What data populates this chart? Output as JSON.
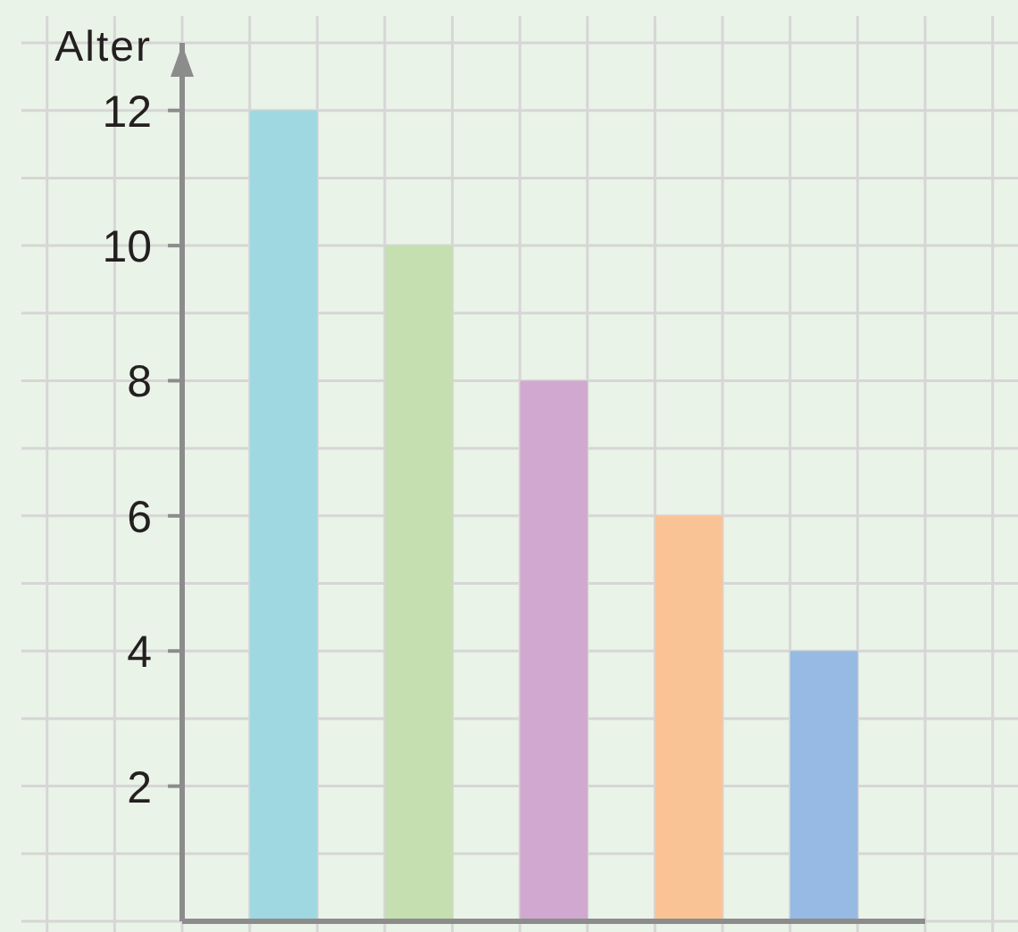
{
  "chart_data": {
    "type": "bar",
    "ylabel": "Alter",
    "categories": [
      null,
      null,
      null,
      null,
      null
    ],
    "values": [
      12,
      10,
      8,
      6,
      4
    ],
    "colors": [
      "#a0d8e2",
      "#c5dfb0",
      "#d1a9d0",
      "#f9c396",
      "#96bae3"
    ],
    "ylim": [
      0,
      13
    ],
    "yticks": [
      2,
      4,
      6,
      8,
      10,
      12
    ],
    "grid": true,
    "tick_labels": "y"
  }
}
